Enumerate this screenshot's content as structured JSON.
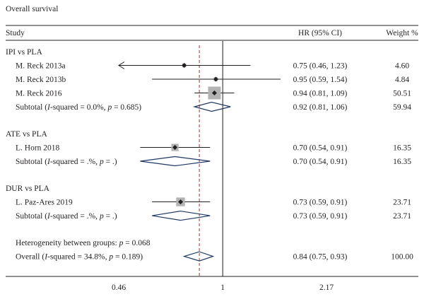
{
  "chart_data": {
    "type": "forest",
    "title": "Overall survival",
    "header": {
      "study": "Study",
      "hr": "HR (95% CI)",
      "weight": "Weight %"
    },
    "scale": "log",
    "xlim": [
      0.46,
      2.17
    ],
    "xticks": [
      "0.46",
      "1",
      "2.17"
    ],
    "null_value": 1,
    "overall_line_value": 0.84,
    "colors": {
      "line": "#231f20",
      "box": "#b3b3b3",
      "diamond": "#1f3864",
      "overall_line": "#c0504d"
    },
    "groups": [
      {
        "label": "IPI vs PLA",
        "studies": [
          {
            "name": "M. Reck 2013a",
            "hr": 0.75,
            "lo": 0.46,
            "hi": 1.23,
            "hr_text": "0.75 (0.46, 1.23)",
            "weight": "4.60",
            "w": 4.6,
            "arrow_left": true
          },
          {
            "name": "M. Reck 2013b",
            "hr": 0.95,
            "lo": 0.59,
            "hi": 1.54,
            "hr_text": "0.95 (0.59, 1.54)",
            "weight": "4.84",
            "w": 4.84
          },
          {
            "name": "M. Reck 2016",
            "hr": 0.94,
            "lo": 0.81,
            "hi": 1.09,
            "hr_text": "0.94 (0.81, 1.09)",
            "weight": "50.51",
            "w": 50.51
          }
        ],
        "subtotal": {
          "prefix": "Subtotal (",
          "i2": "I",
          "mid": "-squared = 0.0%, ",
          "p": "p",
          "suffix": " = 0.685)",
          "hr": 0.92,
          "lo": 0.81,
          "hi": 1.06,
          "hr_text": "0.92 (0.81, 1.06)",
          "weight": "59.94"
        }
      },
      {
        "label": "ATE vs PLA",
        "studies": [
          {
            "name": "L. Horn 2018",
            "hr": 0.7,
            "lo": 0.54,
            "hi": 0.91,
            "hr_text": "0.70 (0.54, 0.91)",
            "weight": "16.35",
            "w": 16.35
          }
        ],
        "subtotal": {
          "prefix": "Subtotal (",
          "i2": "I",
          "mid": "-squared = .%, ",
          "p": "p",
          "suffix": " = .)",
          "hr": 0.7,
          "lo": 0.54,
          "hi": 0.91,
          "hr_text": "0.70 (0.54, 0.91)",
          "weight": "16.35"
        }
      },
      {
        "label": "DUR vs PLA",
        "studies": [
          {
            "name": "L. Paz-Ares 2019",
            "hr": 0.73,
            "lo": 0.59,
            "hi": 0.91,
            "hr_text": "0.73 (0.59, 0.91)",
            "weight": "23.71",
            "w": 23.71
          }
        ],
        "subtotal": {
          "prefix": "Subtotal (",
          "i2": "I",
          "mid": "-squared = .%, ",
          "p": "p",
          "suffix": " = .)",
          "hr": 0.73,
          "lo": 0.59,
          "hi": 0.91,
          "hr_text": "0.73 (0.59, 0.91)",
          "weight": "23.71"
        }
      }
    ],
    "heterogeneity": {
      "prefix": "Heterogeneity between groups: ",
      "p": "p",
      "suffix": " = 0.068"
    },
    "overall": {
      "prefix": "Overall (",
      "i2": "I",
      "mid": "-squared = 34.8%, ",
      "p": "p",
      "suffix": " = 0.189)",
      "hr": 0.84,
      "lo": 0.75,
      "hi": 0.93,
      "hr_text": "0.84 (0.75, 0.93)",
      "weight": "100.00"
    }
  }
}
